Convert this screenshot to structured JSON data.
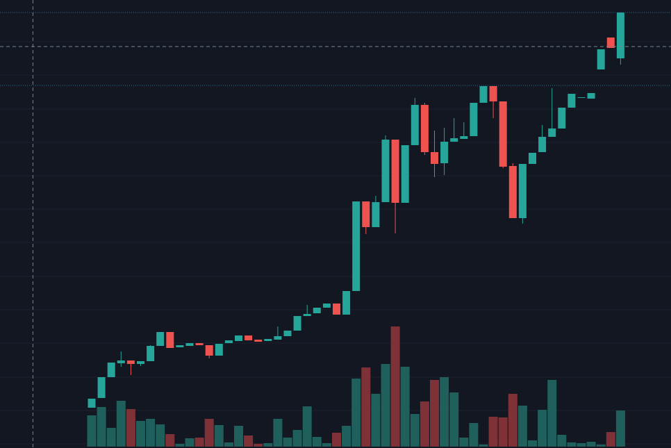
{
  "chart_data": {
    "type": "candlestick",
    "ylim": [
      0,
      645
    ],
    "yticks": [
      6,
      54,
      102,
      151,
      199,
      247,
      296,
      344,
      392,
      440,
      488,
      537,
      585
    ],
    "grid": true,
    "up_color": "#26a69a",
    "down_color": "#ef5350",
    "volume_up_color": "#1f5f5c",
    "volume_down_color": "#7e3237",
    "price_lines": [
      627,
      522
    ],
    "crosshair": {
      "price": 578,
      "index": -6
    },
    "series": {
      "open": [
        58,
        72,
        102,
        122,
        126,
        121,
        125,
        147,
        167,
        145,
        147,
        151,
        148,
        133,
        151,
        154,
        162,
        156,
        154,
        156,
        161,
        169,
        190,
        194,
        202,
        208,
        192,
        226,
        355,
        318,
        354,
        444,
        353,
        436,
        494,
        426,
        410,
        441,
        445,
        449,
        497,
        521,
        499,
        406,
        331,
        409,
        426,
        448,
        460,
        490,
        504,
        503,
        545,
        591,
        561
      ],
      "high": [
        71,
        102,
        123,
        139,
        126,
        125,
        148,
        167,
        167,
        148,
        151,
        151,
        148,
        150,
        155,
        162,
        162,
        156,
        157,
        175,
        169,
        190,
        206,
        202,
        208,
        208,
        226,
        355,
        355,
        363,
        450,
        444,
        436,
        504,
        497,
        457,
        461,
        475,
        469,
        497,
        521,
        521,
        499,
        410,
        409,
        425,
        465,
        518,
        490,
        510,
        505,
        511,
        574,
        591,
        627
      ],
      "low": [
        58,
        72,
        102,
        117,
        105,
        118,
        125,
        147,
        144,
        145,
        147,
        148,
        129,
        133,
        151,
        154,
        155,
        153,
        154,
        156,
        161,
        169,
        190,
        194,
        202,
        192,
        192,
        226,
        308,
        318,
        354,
        309,
        353,
        436,
        422,
        390,
        393,
        441,
        445,
        449,
        497,
        475,
        403,
        331,
        323,
        409,
        426,
        448,
        460,
        490,
        504,
        503,
        545,
        576,
        552
      ],
      "close": [
        71,
        102,
        123,
        126,
        121,
        125,
        147,
        167,
        144,
        148,
        151,
        148,
        133,
        150,
        155,
        162,
        155,
        153,
        157,
        161,
        169,
        190,
        193,
        202,
        208,
        192,
        226,
        355,
        318,
        354,
        444,
        353,
        436,
        494,
        426,
        409,
        441,
        446,
        449,
        497,
        521,
        499,
        405,
        331,
        409,
        425,
        448,
        460,
        490,
        510,
        505,
        511,
        574,
        576,
        627
      ],
      "volume": [
        45,
        57,
        27,
        66,
        54,
        37,
        40,
        32,
        18,
        4,
        12,
        13,
        40,
        31,
        6,
        30,
        16,
        4,
        5,
        40,
        13,
        24,
        58,
        14,
        5,
        20,
        30,
        98,
        114,
        76,
        119,
        173,
        115,
        47,
        65,
        96,
        100,
        78,
        13,
        34,
        3,
        43,
        42,
        76,
        59,
        9,
        53,
        96,
        17,
        6,
        5,
        7,
        3,
        21,
        52
      ]
    }
  }
}
